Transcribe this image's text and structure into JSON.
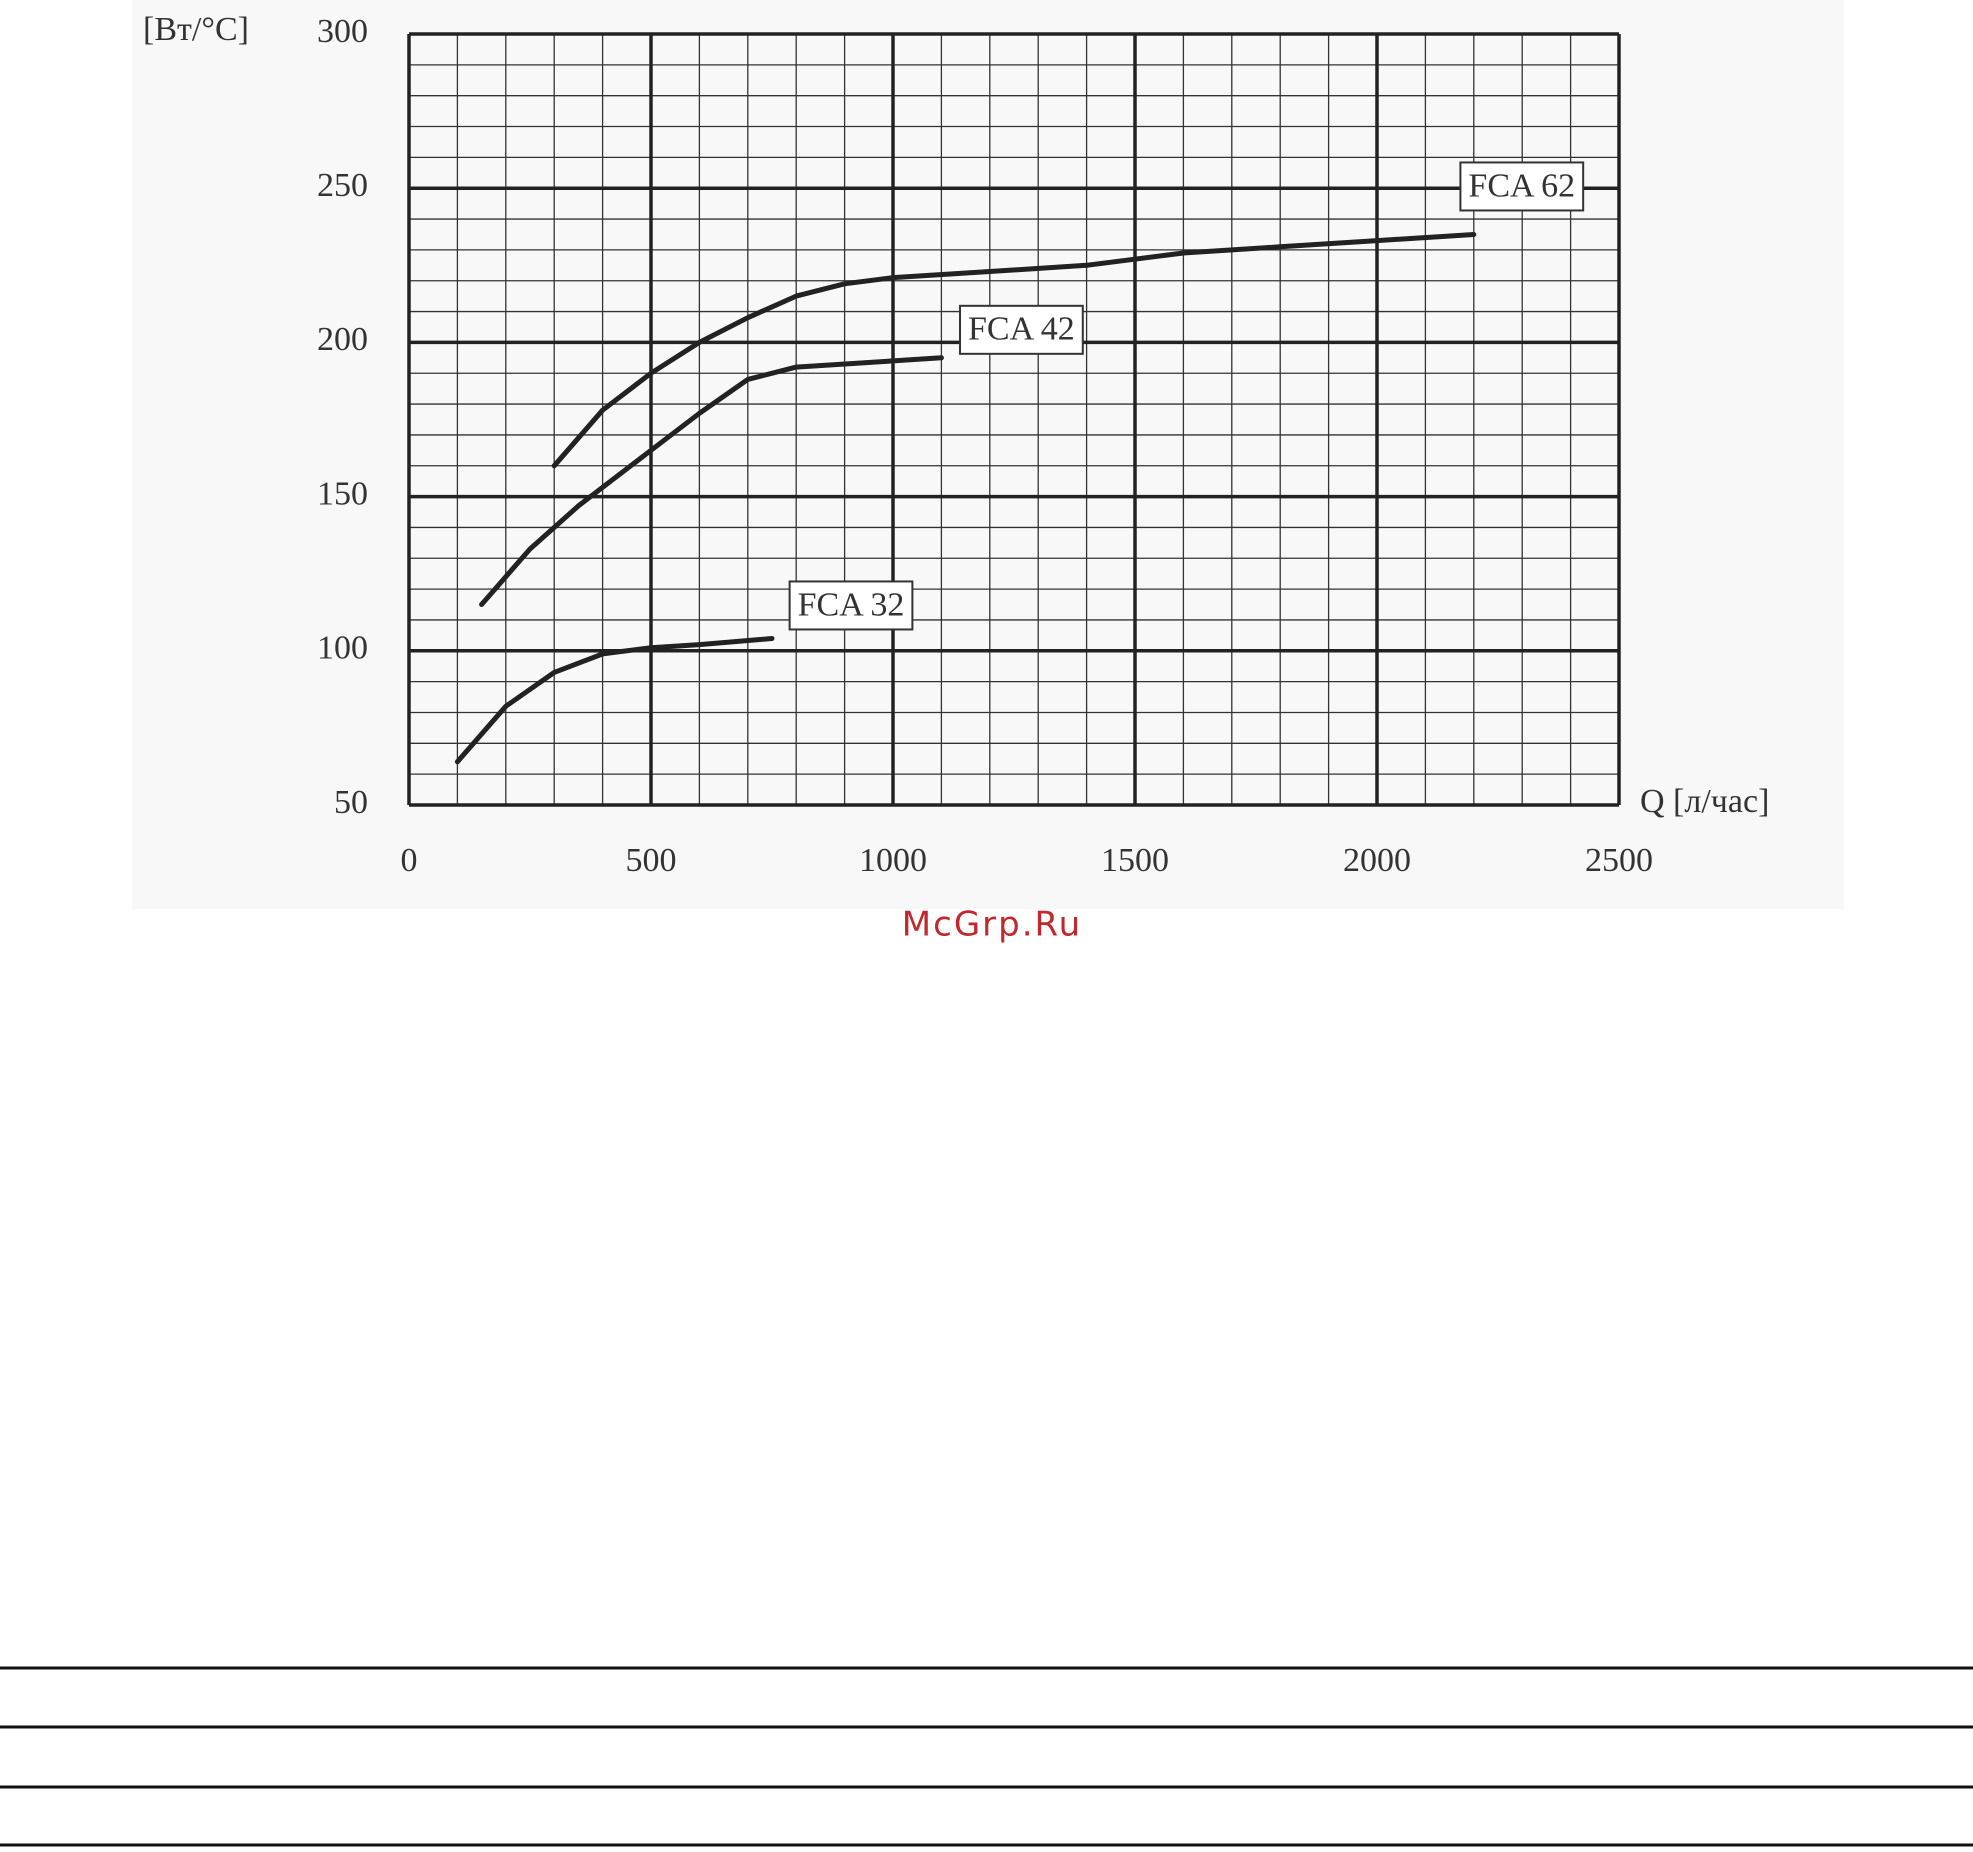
{
  "chart_data": {
    "type": "line",
    "y_label": "[Вт/°C]",
    "x_label": "Q [л/час]",
    "xlim": [
      0,
      2500
    ],
    "xticks": [
      0,
      500,
      1000,
      1500,
      2000,
      2500
    ],
    "ylim": [
      50,
      300
    ],
    "yticks": [
      50,
      100,
      150,
      200,
      250,
      300
    ],
    "grid": true,
    "minor_grid": {
      "x": 100,
      "y": 10
    },
    "series": [
      {
        "name": "FCA 62",
        "color": "#222222",
        "x": [
          300,
          400,
          500,
          600,
          700,
          800,
          900,
          1000,
          1200,
          1400,
          1600,
          1800,
          2000,
          2200
        ],
        "values": [
          160,
          178,
          190,
          200,
          208,
          215,
          219,
          221,
          223,
          225,
          229,
          231,
          233,
          235
        ]
      },
      {
        "name": "FCA 42",
        "color": "#222222",
        "x": [
          150,
          250,
          350,
          500,
          600,
          700,
          800,
          1000,
          1100
        ],
        "values": [
          115,
          133,
          147,
          165,
          177,
          188,
          192,
          194,
          195
        ]
      },
      {
        "name": "FCA 32",
        "color": "#222222",
        "x": [
          100,
          200,
          300,
          400,
          500,
          600,
          750
        ],
        "values": [
          64,
          82,
          93,
          99,
          101,
          102,
          104
        ]
      }
    ],
    "watermark": "McGrp.Ru"
  }
}
